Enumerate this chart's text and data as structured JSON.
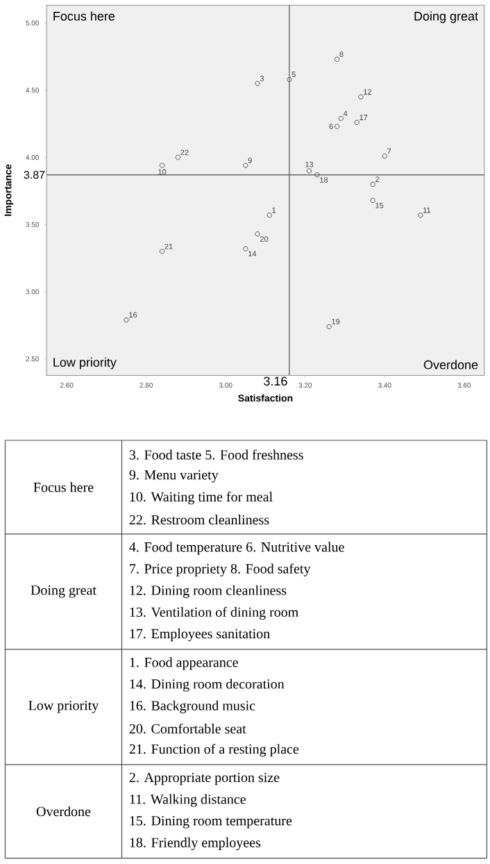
{
  "chart_data": {
    "type": "scatter",
    "xlabel": "Satisfaction",
    "ylabel": "Importance",
    "color": "#555555",
    "marker": "circle",
    "x": [
      3.11,
      3.37,
      3.08,
      3.29,
      3.16,
      3.28,
      3.4,
      3.28,
      3.05,
      2.84,
      3.49,
      3.34,
      3.21,
      3.05,
      3.37,
      2.75,
      3.33,
      3.23,
      3.26,
      3.08,
      2.84,
      2.88
    ],
    "values": [
      3.57,
      3.8,
      4.55,
      4.29,
      4.58,
      4.23,
      4.01,
      4.73,
      3.94,
      3.94,
      3.57,
      4.45,
      3.9,
      3.32,
      3.68,
      2.79,
      4.26,
      3.87,
      2.74,
      3.43,
      3.3,
      4.0
    ],
    "xlim": [
      2.55,
      3.65
    ],
    "ylim": [
      2.38,
      5.13
    ],
    "xticks": [
      {
        "value": 2.6,
        "label": "2.60"
      },
      {
        "value": 2.8,
        "label": "2.80"
      },
      {
        "value": 3.0,
        "label": "3.00"
      },
      {
        "value": 3.2,
        "label": "3.20"
      },
      {
        "value": 3.4,
        "label": "3.40"
      },
      {
        "value": 3.6,
        "label": "3.60"
      }
    ],
    "yticks": [
      {
        "value": 2.5,
        "label": "2.50"
      },
      {
        "value": 3.0,
        "label": "3.00"
      },
      {
        "value": 3.5,
        "label": "3.50"
      },
      {
        "value": 4.0,
        "label": "4.00"
      },
      {
        "value": 4.5,
        "label": "4.50"
      },
      {
        "value": 5.0,
        "label": "5.00"
      }
    ],
    "ref_lines": [
      {
        "axis": "x",
        "value": 3.16,
        "label": "3.16"
      },
      {
        "axis": "y",
        "value": 3.87,
        "label": "3.87"
      }
    ],
    "annotations": [
      "Focus here",
      "Doing great",
      "Low priority",
      "Overdone",
      "Focus here",
      "3. Food taste 5. Food freshness",
      "9. Menu variety",
      "10. Waiting time for meal",
      "22. Restroom cleanliness",
      "Doing great",
      "4. Food temperature 6. Nutritive value",
      "7. Price propriety 8. Food safety",
      "12. Dining room cleanliness",
      "13. Ventilation of dining room",
      "17. Employees sanitation",
      "Low priority",
      "1. Food appearance",
      "14. Dining room decoration",
      "16. Background music",
      "20. Comfortable seat",
      "21. Function of a resting place",
      "Overdone",
      "2. Appropriate portion size",
      "11. Walking distance",
      "15. Dining room temperature",
      "18. Friendly employees",
      {
        "text": "1",
        "x": 3.11,
        "y": 3.57
      },
      {
        "text": "2",
        "x": 3.37,
        "y": 3.8
      },
      {
        "text": "3",
        "x": 3.08,
        "y": 4.55
      },
      {
        "text": "4",
        "x": 3.29,
        "y": 4.29
      },
      {
        "text": "5",
        "x": 3.16,
        "y": 4.58
      },
      {
        "text": "6",
        "x": 3.28,
        "y": 4.23
      },
      {
        "text": "7",
        "x": 3.4,
        "y": 4.01
      },
      {
        "text": "8",
        "x": 3.28,
        "y": 4.73
      },
      {
        "text": "9",
        "x": 3.05,
        "y": 3.94
      },
      {
        "text": "10",
        "x": 2.84,
        "y": 3.94
      },
      {
        "text": "11",
        "x": 3.49,
        "y": 3.57
      },
      {
        "text": "12",
        "x": 3.34,
        "y": 4.45
      },
      {
        "text": "13",
        "x": 3.21,
        "y": 3.9
      },
      {
        "text": "14",
        "x": 3.05,
        "y": 3.32
      },
      {
        "text": "15",
        "x": 3.37,
        "y": 3.68
      },
      {
        "text": "16",
        "x": 2.75,
        "y": 2.79
      },
      {
        "text": "17",
        "x": 3.33,
        "y": 4.26
      },
      {
        "text": "18",
        "x": 3.23,
        "y": 3.87
      },
      {
        "text": "19",
        "x": 3.26,
        "y": 2.74
      },
      {
        "text": "20",
        "x": 3.08,
        "y": 3.43
      },
      {
        "text": "21",
        "x": 2.84,
        "y": 3.3
      },
      {
        "text": "22",
        "x": 2.88,
        "y": 4.0
      }
    ]
  }
}
